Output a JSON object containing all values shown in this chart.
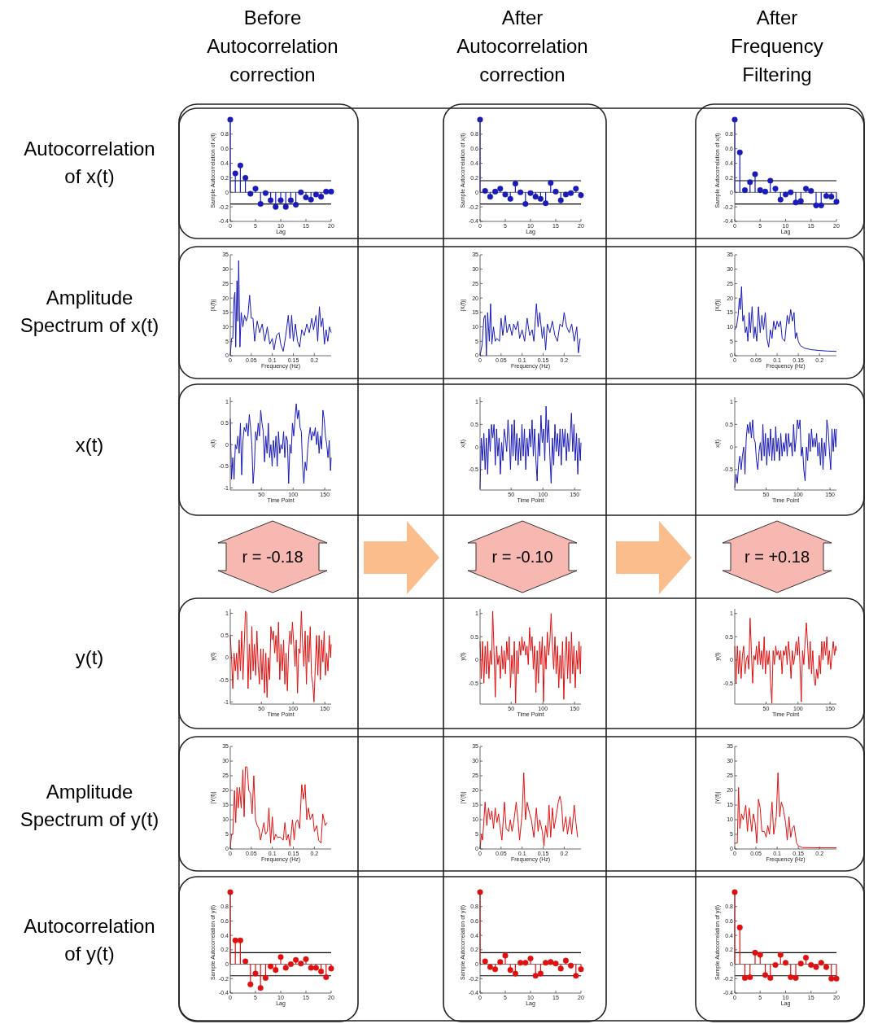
{
  "chart_data": [
    {
      "type": "other",
      "annotations": [
        "Before\nAutocorrelation\ncorrection",
        "After\nAutocorrelation\ncorrection",
        "After\nFrequency\nFiltering",
        "Autocorrelation\nof x(t)",
        "Amplitude\nSpectrum of x(t)",
        "x(t)",
        "y(t)",
        "Amplitude\nSpectrum of y(t)",
        "Autocorrelation\nof y(t)",
        "r = -0.18",
        "r = -0.10",
        "r = +0.18"
      ]
    },
    {
      "type": "lollipop",
      "xlabel": "Lag",
      "ylabel": "Sample Autocorrelation of x(t)",
      "color": "#1a1ab8",
      "marker": "circle",
      "xlim": [
        0,
        20
      ],
      "ylim": [
        -0.4,
        1
      ],
      "xticks": [
        0,
        5,
        10,
        15,
        20
      ],
      "yticks": [
        -0.4,
        -0.2,
        0,
        0.2,
        0.4,
        0.6,
        0.8
      ],
      "ref_lines": [
        {
          "axis": "y",
          "value": 0.16,
          "color": "#000000"
        },
        {
          "axis": "y",
          "value": -0.16,
          "color": "#000000"
        }
      ],
      "x": [
        0,
        1,
        2,
        3,
        4,
        5,
        6,
        7,
        8,
        9,
        10,
        11,
        12,
        13,
        14,
        15,
        16,
        17,
        18,
        19,
        20
      ],
      "values": [
        1,
        0.26,
        0.37,
        0.2,
        -0.02,
        0.05,
        -0.16,
        -0.01,
        -0.11,
        -0.2,
        -0.11,
        -0.2,
        -0.11,
        -0.17,
        0,
        -0.07,
        -0.1,
        -0.03,
        -0.06,
        0.01,
        0.01
      ]
    },
    {
      "type": "lollipop",
      "xlabel": "Lag",
      "ylabel": "Sample Autocorrelation of x(t)",
      "color": "#1a1ab8",
      "marker": "circle",
      "xlim": [
        0,
        20
      ],
      "ylim": [
        -0.4,
        1
      ],
      "xticks": [
        0,
        5,
        10,
        15,
        20
      ],
      "yticks": [
        -0.4,
        -0.2,
        0,
        0.2,
        0.4,
        0.6,
        0.8
      ],
      "ref_lines": [
        {
          "axis": "y",
          "value": 0.16,
          "color": "#000000"
        },
        {
          "axis": "y",
          "value": -0.16,
          "color": "#000000"
        }
      ],
      "x": [
        0,
        1,
        2,
        3,
        4,
        5,
        6,
        7,
        8,
        9,
        10,
        11,
        12,
        13,
        14,
        15,
        16,
        17,
        18,
        19,
        20
      ],
      "values": [
        1,
        0.02,
        -0.06,
        0.01,
        0.05,
        -0.03,
        -0.09,
        0.12,
        0,
        -0.16,
        -0.01,
        -0.06,
        -0.09,
        -0.15,
        0.13,
        0.01,
        -0.11,
        -0.03,
        -0.01,
        0.05,
        -0.04
      ]
    },
    {
      "type": "lollipop",
      "xlabel": "Lag",
      "ylabel": "Sample Autocorrelation of x(t)",
      "color": "#1a1ab8",
      "marker": "circle",
      "xlim": [
        0,
        20
      ],
      "ylim": [
        -0.4,
        1
      ],
      "xticks": [
        0,
        5,
        10,
        15,
        20
      ],
      "yticks": [
        -0.4,
        -0.2,
        0,
        0.2,
        0.4,
        0.6,
        0.8
      ],
      "ref_lines": [
        {
          "axis": "y",
          "value": 0.16,
          "color": "#000000"
        },
        {
          "axis": "y",
          "value": -0.16,
          "color": "#000000"
        }
      ],
      "x": [
        0,
        1,
        2,
        3,
        4,
        5,
        6,
        7,
        8,
        9,
        10,
        11,
        12,
        13,
        14,
        15,
        16,
        17,
        18,
        19,
        20
      ],
      "values": [
        1,
        0.55,
        0.03,
        0.14,
        0.25,
        0.03,
        0.01,
        0.16,
        0.05,
        -0.1,
        -0.03,
        0,
        -0.14,
        -0.12,
        0.05,
        0.02,
        -0.18,
        -0.18,
        -0.05,
        -0.06,
        -0.13
      ]
    },
    {
      "type": "line",
      "xlabel": "Frequency (Hz)",
      "ylabel": "|X(f)|",
      "color": "#1a1ab8",
      "xlim": [
        0,
        0.24
      ],
      "ylim": [
        0,
        35
      ],
      "xticks": [
        0,
        0.05,
        0.1,
        0.15,
        0.2
      ],
      "yticks": [
        0,
        5,
        10,
        15,
        20,
        25,
        30,
        35
      ],
      "x": [
        0,
        0.003,
        0.006,
        0.009,
        0.011,
        0.013,
        0.016,
        0.018,
        0.02,
        0.023,
        0.026,
        0.03,
        0.034,
        0.038,
        0.042,
        0.046,
        0.05,
        0.054,
        0.058,
        0.064,
        0.07,
        0.076,
        0.082,
        0.088,
        0.094,
        0.1,
        0.104,
        0.11,
        0.116,
        0.12,
        0.126,
        0.132,
        0.138,
        0.142,
        0.146,
        0.15,
        0.155,
        0.16,
        0.165,
        0.17,
        0.176,
        0.182,
        0.188,
        0.194,
        0.198,
        0.204,
        0.208,
        0.212,
        0.216,
        0.22,
        0.224,
        0.228,
        0.232,
        0.236,
        0.24
      ],
      "values": [
        0,
        6,
        6,
        20,
        22,
        3,
        26,
        12,
        33,
        3,
        15,
        10,
        14,
        12,
        14,
        21,
        13,
        13,
        5,
        12,
        8,
        11,
        5,
        10,
        4,
        6,
        2,
        7,
        8,
        4,
        1.5,
        7,
        14,
        6,
        14,
        5,
        11,
        5,
        3,
        9,
        7,
        11,
        8,
        13,
        9,
        14,
        5,
        17,
        10,
        13,
        4,
        9,
        5,
        10,
        8
      ]
    },
    {
      "type": "line",
      "xlabel": "Frequency (Hz)",
      "ylabel": "|X(f)|",
      "color": "#1a1ab8",
      "xlim": [
        0,
        0.24
      ],
      "ylim": [
        0,
        35
      ],
      "xticks": [
        0,
        0.05,
        0.1,
        0.15,
        0.2
      ],
      "yticks": [
        0,
        5,
        10,
        15,
        20,
        25,
        30,
        35
      ],
      "x": [
        0,
        0.005,
        0.009,
        0.012,
        0.015,
        0.018,
        0.022,
        0.025,
        0.028,
        0.032,
        0.036,
        0.04,
        0.046,
        0.05,
        0.054,
        0.06,
        0.064,
        0.07,
        0.076,
        0.08,
        0.085,
        0.09,
        0.094,
        0.1,
        0.106,
        0.112,
        0.118,
        0.124,
        0.128,
        0.134,
        0.138,
        0.142,
        0.148,
        0.152,
        0.156,
        0.16,
        0.166,
        0.172,
        0.178,
        0.184,
        0.19,
        0.196,
        0.2,
        0.206,
        0.212,
        0.218,
        0.224,
        0.23,
        0.234,
        0.238
      ],
      "values": [
        0,
        4,
        13,
        14,
        0,
        15,
        5,
        18,
        4,
        10,
        5,
        6,
        5,
        13,
        7,
        14,
        8,
        11,
        7,
        11,
        9,
        12,
        6,
        9,
        5,
        13,
        7,
        9,
        5,
        18,
        10,
        15,
        6,
        10,
        2,
        11,
        8,
        12,
        7,
        5,
        11,
        10,
        15,
        10,
        8,
        11,
        5,
        10,
        1,
        6
      ]
    },
    {
      "type": "line",
      "xlabel": "Frequency (Hz)",
      "ylabel": "|X(f)|",
      "color": "#1a1ab8",
      "xlim": [
        0,
        0.24
      ],
      "ylim": [
        0,
        35
      ],
      "xticks": [
        0,
        0.05,
        0.1,
        0.15,
        0.2
      ],
      "yticks": [
        0,
        5,
        10,
        15,
        20,
        25,
        30,
        35
      ],
      "x": [
        0,
        0.004,
        0.008,
        0.011,
        0.013,
        0.016,
        0.019,
        0.022,
        0.025,
        0.028,
        0.031,
        0.034,
        0.037,
        0.041,
        0.045,
        0.048,
        0.052,
        0.056,
        0.06,
        0.064,
        0.068,
        0.072,
        0.076,
        0.08,
        0.084,
        0.088,
        0.092,
        0.096,
        0.1,
        0.104,
        0.108,
        0.112,
        0.118,
        0.124,
        0.128,
        0.132,
        0.136,
        0.14,
        0.143,
        0.146,
        0.15,
        0.155,
        0.165,
        0.18,
        0.2,
        0.22,
        0.24
      ],
      "values": [
        9,
        10,
        14,
        20,
        16,
        24,
        12,
        14,
        8,
        10,
        5,
        15,
        8,
        17,
        6,
        10,
        5,
        17,
        8,
        14,
        9,
        15,
        6,
        3,
        9,
        6,
        12,
        9,
        12,
        10,
        12,
        6,
        5,
        14,
        11,
        16,
        12,
        15,
        6,
        8,
        5,
        3.5,
        2.6,
        2.1,
        1.8,
        1.6,
        1.5
      ]
    },
    {
      "type": "line",
      "xlabel": "Time Point",
      "ylabel": "x(t)",
      "color": "#1a1ab8",
      "xlim": [
        1,
        160
      ],
      "ylim": [
        -1.05,
        1.1
      ],
      "xticks": [
        50,
        100,
        150
      ],
      "yticks": [
        -1,
        -0.5,
        0,
        0.5,
        1
      ],
      "x": [
        1,
        3,
        5,
        7,
        9,
        11,
        13,
        15,
        17,
        19,
        21,
        23,
        25,
        27,
        29,
        31,
        33,
        35,
        37,
        39,
        41,
        43,
        45,
        47,
        49,
        51,
        53,
        55,
        57,
        59,
        61,
        63,
        65,
        67,
        69,
        71,
        73,
        75,
        77,
        79,
        81,
        83,
        85,
        87,
        89,
        91,
        93,
        95,
        97,
        99,
        101,
        103,
        105,
        107,
        109,
        111,
        113,
        115,
        117,
        119,
        121,
        123,
        125,
        127,
        129,
        131,
        133,
        135,
        137,
        139,
        141,
        143,
        145,
        147,
        149,
        151,
        153,
        155,
        157,
        159,
        160
      ],
      "values": [
        0.6,
        -0.8,
        -0.3,
        -0.8,
        0,
        -0.1,
        0.2,
        -0.2,
        0.5,
        -0.7,
        0.1,
        0.4,
        0.3,
        0.5,
        0.2,
        0.7,
        0.4,
        0,
        -0.9,
        -0.5,
        0.3,
        0.1,
        0.5,
        0.2,
        0.8,
        0.5,
        0.3,
        -0.4,
        0.2,
        -0.2,
        0.5,
        -0.3,
        0,
        -0.5,
        0.1,
        -0.3,
        0.2,
        -0.5,
        0.3,
        -0.2,
        0,
        -0.1,
        0.3,
        -0.3,
        0.2,
        0.1,
        -0.9,
        0,
        -0.2,
        0.5,
        0.2,
        0.6,
        0.95,
        0.6,
        0.8,
        0.4,
        0.3,
        -0.5,
        -0.9,
        -0.4,
        -0.6,
        -0.1,
        0.2,
        0.4,
        0.1,
        0.3,
        0.2,
        0.4,
        0,
        0.3,
        -0.2,
        0.2,
        -0.1,
        0.8,
        0.6,
        0.2,
        0,
        -0.3,
        0.1,
        -0.6,
        -0.3
      ]
    },
    {
      "type": "line",
      "xlabel": "Time Point",
      "ylabel": "x(t)",
      "color": "#1a1ab8",
      "xlim": [
        1,
        160
      ],
      "ylim": [
        -0.95,
        1.1
      ],
      "xticks": [
        50,
        100,
        150
      ],
      "yticks": [
        -0.5,
        0,
        0.5,
        1
      ],
      "x": [
        1,
        3,
        5,
        7,
        9,
        11,
        13,
        15,
        17,
        19,
        21,
        23,
        25,
        27,
        29,
        31,
        33,
        35,
        37,
        39,
        41,
        43,
        45,
        47,
        49,
        51,
        53,
        55,
        57,
        59,
        61,
        63,
        65,
        67,
        69,
        71,
        73,
        75,
        77,
        79,
        81,
        83,
        85,
        87,
        89,
        91,
        93,
        95,
        97,
        99,
        101,
        103,
        105,
        107,
        109,
        111,
        113,
        115,
        117,
        119,
        121,
        123,
        125,
        127,
        129,
        131,
        133,
        135,
        137,
        139,
        141,
        143,
        145,
        147,
        149,
        151,
        153,
        155,
        157,
        159,
        160
      ],
      "values": [
        -0.93,
        0.2,
        -0.3,
        0.3,
        -0.5,
        0.2,
        -0.6,
        0.4,
        -0.1,
        0.5,
        0.2,
        0.5,
        -0.4,
        0.4,
        -0.2,
        0.2,
        -0.6,
        0.1,
        -0.3,
        0.4,
        0.2,
        -0.1,
        0.6,
        0.2,
        -0.5,
        0.5,
        -0.2,
        0.6,
        -0.3,
        0.3,
        -0.4,
        0.2,
        -0.3,
        0.5,
        -0.2,
        0.4,
        -0.5,
        0.2,
        -0.2,
        0.4,
        0,
        0.6,
        -0.2,
        0.4,
        -0.3,
        -0.75,
        0.3,
        -0.2,
        0.7,
        0.1,
        0.4,
        -0.3,
        0.9,
        0.1,
        0.6,
        -0.2,
        -0.8,
        0.2,
        -0.4,
        0.5,
        -0.1,
        0.3,
        -0.2,
        0.4,
        -0.4,
        0.4,
        0,
        0.4,
        -0.3,
        0.3,
        -0.1,
        0.2,
        0.75,
        -0.1,
        0.5,
        -0.3,
        0.3,
        -0.6,
        0.2,
        -0.3,
        0.1
      ]
    },
    {
      "type": "line",
      "xlabel": "Time Point",
      "ylabel": "x(t)",
      "color": "#1a1ab8",
      "xlim": [
        1,
        160
      ],
      "ylim": [
        -0.95,
        1.1
      ],
      "xticks": [
        50,
        100,
        150
      ],
      "yticks": [
        -0.5,
        0,
        0.5,
        1
      ],
      "x": [
        1,
        3,
        5,
        7,
        9,
        11,
        13,
        15,
        17,
        19,
        21,
        23,
        25,
        27,
        29,
        31,
        33,
        35,
        37,
        39,
        41,
        43,
        45,
        47,
        49,
        51,
        53,
        55,
        57,
        59,
        61,
        63,
        65,
        67,
        69,
        71,
        73,
        75,
        77,
        79,
        81,
        83,
        85,
        87,
        89,
        91,
        93,
        95,
        97,
        99,
        101,
        103,
        105,
        107,
        109,
        111,
        113,
        115,
        117,
        119,
        121,
        123,
        125,
        127,
        129,
        131,
        133,
        135,
        137,
        139,
        141,
        143,
        145,
        147,
        149,
        151,
        153,
        155,
        157,
        159,
        160
      ],
      "values": [
        -0.9,
        -0.6,
        -0.8,
        -0.4,
        -0.2,
        -0.5,
        -0.2,
        0,
        -0.6,
        0.2,
        0.5,
        0.3,
        0.55,
        0.2,
        0.6,
        0.2,
        0.1,
        -0.3,
        -0.5,
        -0.1,
        0.1,
        -0.3,
        0.5,
        -0.2,
        0.3,
        -0.4,
        0.2,
        -0.2,
        0.4,
        -0.3,
        0.2,
        -0.3,
        0.45,
        -0.1,
        0.2,
        -0.3,
        0.3,
        -0.2,
        0.1,
        -0.1,
        0.3,
        -0.2,
        0.3,
        0,
        0.1,
        -0.2,
        0.5,
        -0.1,
        0.2,
        0.6,
        0.4,
        0.6,
        -0.2,
        0,
        -0.5,
        -0.75,
        0,
        -0.3,
        0.3,
        -0.1,
        0.4,
        0,
        0.2,
        0,
        0.3,
        -0.2,
        0.1,
        -0.4,
        0.2,
        -0.5,
        0.1,
        -0.2,
        0.6,
        0.4,
        -0.1,
        -0.5,
        0.4,
        -0.1,
        0.4,
        0,
        0.4
      ]
    },
    {
      "type": "line",
      "xlabel": "Time Point",
      "ylabel": "y(t)",
      "color": "#e01010",
      "xlim": [
        1,
        160
      ],
      "ylim": [
        -1.05,
        1.1
      ],
      "xticks": [
        50,
        100,
        150
      ],
      "yticks": [
        -1,
        -0.5,
        0,
        0.5,
        1
      ],
      "x": [
        1,
        3,
        5,
        7,
        9,
        11,
        13,
        15,
        17,
        19,
        21,
        23,
        25,
        27,
        29,
        31,
        33,
        35,
        37,
        39,
        41,
        43,
        45,
        47,
        49,
        51,
        53,
        55,
        57,
        59,
        61,
        63,
        65,
        67,
        69,
        71,
        73,
        75,
        77,
        79,
        81,
        83,
        85,
        87,
        89,
        91,
        93,
        95,
        97,
        99,
        101,
        103,
        105,
        107,
        109,
        111,
        113,
        115,
        117,
        119,
        121,
        123,
        125,
        127,
        129,
        131,
        133,
        135,
        137,
        139,
        141,
        143,
        145,
        147,
        149,
        151,
        153,
        155,
        157,
        159,
        160
      ],
      "values": [
        0.5,
        0,
        -0.7,
        0.1,
        -0.3,
        0.1,
        -0.5,
        0.4,
        -0.3,
        0.6,
        -0.5,
        0.3,
        1.05,
        1,
        -0.7,
        0.3,
        -0.5,
        0.7,
        -0.3,
        0.3,
        -0.4,
        0.6,
        -0.2,
        -0.6,
        0.2,
        -0.5,
        0.2,
        -0.8,
        0.1,
        -0.9,
        0,
        -0.5,
        0.7,
        0.4,
        0.6,
        0.1,
        0.5,
        -0.1,
        0.8,
        -0.5,
        0.3,
        -0.3,
        0.4,
        -0.6,
        0.1,
        -0.75,
        0.2,
        0.6,
        0.3,
        0.8,
        0.3,
        -0.2,
        0.4,
        -0.8,
        0.2,
        0.1,
        1.05,
        0.3,
        -0.2,
        0.6,
        -0.6,
        0.5,
        -0.1,
        0.7,
        -0.4,
        -0.6,
        -1,
        -0.2,
        0.5,
        -0.4,
        0.5,
        -0.5,
        0.4,
        -0.1,
        0.6,
        -0.4,
        0.1,
        -0.3,
        0.5,
        0,
        0.3
      ]
    },
    {
      "type": "line",
      "xlabel": "Time Point",
      "ylabel": "y(t)",
      "color": "#e01010",
      "xlim": [
        1,
        160
      ],
      "ylim": [
        -0.95,
        1.1
      ],
      "xticks": [
        50,
        100,
        150
      ],
      "yticks": [
        -0.5,
        0,
        0.5,
        1
      ],
      "x": [
        1,
        3,
        5,
        7,
        9,
        11,
        13,
        15,
        17,
        19,
        21,
        23,
        25,
        27,
        29,
        31,
        33,
        35,
        37,
        39,
        41,
        43,
        45,
        47,
        49,
        51,
        53,
        55,
        57,
        59,
        61,
        63,
        65,
        67,
        69,
        71,
        73,
        75,
        77,
        79,
        81,
        83,
        85,
        87,
        89,
        91,
        93,
        95,
        97,
        99,
        101,
        103,
        105,
        107,
        109,
        111,
        113,
        115,
        117,
        119,
        121,
        123,
        125,
        127,
        129,
        131,
        133,
        135,
        137,
        139,
        141,
        143,
        145,
        147,
        149,
        151,
        153,
        155,
        157,
        159,
        160
      ],
      "values": [
        0.4,
        -0.4,
        0.4,
        -0.5,
        0.3,
        -0.3,
        0.4,
        -0.4,
        0.2,
        -0.1,
        1.05,
        0.2,
        -0.8,
        0.3,
        -0.1,
        0.1,
        -0.4,
        0.3,
        -0.2,
        0.2,
        -0.3,
        0.4,
        0,
        0.5,
        -0.6,
        0.1,
        -0.3,
        0.4,
        -0.93,
        0.2,
        -0.3,
        0.4,
        0.1,
        0.5,
        0.2,
        0.4,
        0.1,
        0.3,
        -0.1,
        0.7,
        0.2,
        0.5,
        -0.2,
        0.3,
        -0.7,
        0.2,
        -0.5,
        0.4,
        -0.1,
        0.5,
        -0.9,
        0.3,
        -0.2,
        0.6,
        0.1,
        0.4,
        1,
        0.3,
        -0.2,
        0.5,
        -0.3,
        0.3,
        -0.6,
        0.1,
        -0.4,
        0.4,
        -0.85,
        0.1,
        0.5,
        -0.4,
        0.4,
        -0.5,
        0.6,
        -0.3,
        0.3,
        -0.6,
        0.2,
        -0.2,
        0.4,
        -0.3,
        0.3
      ]
    },
    {
      "type": "line",
      "xlabel": "Time Point",
      "ylabel": "y(t)",
      "color": "#e01010",
      "xlim": [
        1,
        160
      ],
      "ylim": [
        -0.95,
        1.1
      ],
      "xticks": [
        50,
        100,
        150
      ],
      "yticks": [
        -0.5,
        0,
        0.5,
        1
      ],
      "x": [
        1,
        3,
        5,
        7,
        9,
        11,
        13,
        15,
        17,
        19,
        21,
        23,
        25,
        27,
        29,
        31,
        33,
        35,
        37,
        39,
        41,
        43,
        45,
        47,
        49,
        51,
        53,
        55,
        57,
        59,
        61,
        63,
        65,
        67,
        69,
        71,
        73,
        75,
        77,
        79,
        81,
        83,
        85,
        87,
        89,
        91,
        93,
        95,
        97,
        99,
        101,
        103,
        105,
        107,
        109,
        111,
        113,
        115,
        117,
        119,
        121,
        123,
        125,
        127,
        129,
        131,
        133,
        135,
        137,
        139,
        141,
        143,
        145,
        147,
        149,
        151,
        153,
        155,
        157,
        159,
        160
      ],
      "values": [
        0.3,
        -0.5,
        0.3,
        -0.3,
        0.2,
        -0.4,
        0.1,
        0.3,
        -0.3,
        0,
        0.1,
        -0.2,
        0.9,
        0.2,
        -0.5,
        0.1,
        0,
        0.3,
        -0.1,
        0.4,
        -0.1,
        0.2,
        -0.2,
        0.5,
        -0.3,
        0.2,
        -0.1,
        0.2,
        -0.5,
        -0.93,
        0.2,
        -0.1,
        0.3,
        0.1,
        0.2,
        0,
        0.2,
        -0.3,
        0.2,
        0.1,
        0.3,
        -0.1,
        0.4,
        0.1,
        -0.4,
        0.2,
        -0.1,
        0.1,
        0.4,
        0.1,
        0.5,
        -0.1,
        -0.9,
        0.2,
        -0.1,
        0.4,
        0.8,
        0.3,
        -0.2,
        0.4,
        -0.3,
        0.2,
        -0.4,
        -0.55,
        -0.2,
        -0.4,
        0.1,
        -0.3,
        0.4,
        0,
        0.4,
        0.1,
        0.5,
        -0.1,
        0.2,
        -0.2,
        0.1,
        0.4,
        0.1,
        0.3,
        0.2
      ]
    },
    {
      "type": "line",
      "xlabel": "Frequency (Hz)",
      "ylabel": "|Y(f)|",
      "color": "#e01010",
      "xlim": [
        0,
        0.24
      ],
      "ylim": [
        0,
        35
      ],
      "xticks": [
        0,
        0.05,
        0.1,
        0.15,
        0.2
      ],
      "yticks": [
        0,
        5,
        10,
        15,
        20,
        25,
        30,
        35
      ],
      "x": [
        0,
        0.003,
        0.006,
        0.01,
        0.013,
        0.016,
        0.019,
        0.022,
        0.026,
        0.03,
        0.033,
        0.036,
        0.04,
        0.044,
        0.048,
        0.052,
        0.056,
        0.06,
        0.064,
        0.068,
        0.072,
        0.076,
        0.08,
        0.084,
        0.088,
        0.092,
        0.096,
        0.1,
        0.104,
        0.108,
        0.112,
        0.12,
        0.126,
        0.13,
        0.134,
        0.138,
        0.142,
        0.148,
        0.152,
        0.156,
        0.16,
        0.165,
        0.17,
        0.174,
        0.178,
        0.182,
        0.186,
        0.19,
        0.196,
        0.2,
        0.206,
        0.21,
        0.216,
        0.22,
        0.226,
        0.23
      ],
      "values": [
        0,
        5,
        5,
        20,
        9,
        21,
        14,
        21,
        14,
        27,
        11,
        28,
        28,
        20,
        19,
        12,
        25,
        10,
        8,
        7,
        3,
        6,
        9,
        5,
        6,
        14,
        2,
        11,
        3,
        5,
        4,
        4,
        3,
        9,
        3,
        5,
        1,
        10,
        3,
        9,
        10,
        7,
        22,
        17,
        22,
        10,
        14,
        10,
        12,
        6,
        8,
        3,
        2,
        12,
        8,
        9
      ]
    },
    {
      "type": "line",
      "xlabel": "Frequency (Hz)",
      "ylabel": "|Y(f)|",
      "color": "#e01010",
      "xlim": [
        0,
        0.24
      ],
      "ylim": [
        0,
        35
      ],
      "xticks": [
        0,
        0.05,
        0.1,
        0.15,
        0.2
      ],
      "yticks": [
        0,
        5,
        10,
        15,
        20,
        25,
        30,
        35
      ],
      "x": [
        0,
        0.003,
        0.006,
        0.012,
        0.016,
        0.02,
        0.024,
        0.028,
        0.032,
        0.036,
        0.04,
        0.044,
        0.048,
        0.052,
        0.058,
        0.062,
        0.068,
        0.072,
        0.076,
        0.08,
        0.086,
        0.09,
        0.094,
        0.1,
        0.104,
        0.108,
        0.112,
        0.118,
        0.122,
        0.128,
        0.134,
        0.138,
        0.142,
        0.148,
        0.152,
        0.156,
        0.16,
        0.164,
        0.168,
        0.172,
        0.176,
        0.182,
        0.186,
        0.19,
        0.194,
        0.198,
        0.204,
        0.208,
        0.214,
        0.218,
        0.224,
        0.228,
        0.232
      ],
      "values": [
        0,
        5,
        3,
        16,
        8,
        14,
        10,
        13,
        7,
        14,
        9,
        12,
        7,
        3,
        16,
        7,
        6,
        10,
        6,
        9,
        16,
        10,
        3,
        12,
        26,
        10,
        16,
        12,
        10,
        4,
        14,
        6,
        10,
        6,
        1,
        8,
        4,
        15,
        4,
        14,
        7,
        12,
        16,
        18,
        15,
        6,
        11,
        5,
        11,
        5,
        15,
        9,
        4
      ]
    },
    {
      "type": "line",
      "xlabel": "Frequency (Hz)",
      "ylabel": "|Y(f)|",
      "color": "#e01010",
      "xlim": [
        0,
        0.24
      ],
      "ylim": [
        0,
        35
      ],
      "xticks": [
        0,
        0.05,
        0.1,
        0.15,
        0.2
      ],
      "yticks": [
        0,
        5,
        10,
        15,
        20,
        25,
        30,
        35
      ],
      "x": [
        0,
        0.006,
        0.009,
        0.012,
        0.016,
        0.02,
        0.026,
        0.03,
        0.034,
        0.04,
        0.044,
        0.048,
        0.052,
        0.056,
        0.06,
        0.064,
        0.07,
        0.074,
        0.078,
        0.082,
        0.088,
        0.092,
        0.098,
        0.102,
        0.106,
        0.11,
        0.114,
        0.12,
        0.124,
        0.128,
        0.132,
        0.136,
        0.14,
        0.146,
        0.15,
        0.16,
        0.2,
        0.24
      ],
      "values": [
        2,
        2,
        21,
        7,
        12,
        10,
        15,
        6,
        14,
        6,
        12,
        9,
        2,
        17,
        14,
        6,
        6,
        4,
        8,
        5,
        16,
        5,
        11,
        26,
        11,
        16,
        14,
        9,
        3,
        11,
        4,
        7,
        8,
        2,
        1,
        0.5,
        0.4,
        0.4
      ]
    },
    {
      "type": "lollipop",
      "xlabel": "Lag",
      "ylabel": "Sample Autocorrelation of y(t)",
      "color": "#e01010",
      "marker": "circle",
      "xlim": [
        0,
        20
      ],
      "ylim": [
        -0.4,
        1
      ],
      "xticks": [
        0,
        5,
        10,
        15,
        20
      ],
      "yticks": [
        -0.4,
        -0.2,
        0,
        0.2,
        0.4,
        0.6,
        0.8
      ],
      "ref_lines": [
        {
          "axis": "y",
          "value": 0.16,
          "color": "#000000"
        },
        {
          "axis": "y",
          "value": -0.16,
          "color": "#000000"
        }
      ],
      "x": [
        0,
        1,
        2,
        3,
        4,
        5,
        6,
        7,
        8,
        9,
        10,
        11,
        12,
        13,
        14,
        15,
        16,
        17,
        18,
        19,
        20
      ],
      "values": [
        1,
        0.33,
        0.33,
        0.04,
        -0.28,
        -0.13,
        -0.33,
        -0.19,
        -0.03,
        -0.08,
        0.1,
        -0.05,
        0,
        0.06,
        0.01,
        0.07,
        -0.05,
        -0.05,
        -0.1,
        -0.18,
        -0.06
      ]
    },
    {
      "type": "lollipop",
      "xlabel": "Lag",
      "ylabel": "Sample Autocorrelation of y(t)",
      "color": "#e01010",
      "marker": "circle",
      "xlim": [
        0,
        20
      ],
      "ylim": [
        -0.4,
        1
      ],
      "xticks": [
        0,
        5,
        10,
        15,
        20
      ],
      "yticks": [
        -0.4,
        -0.2,
        0,
        0.2,
        0.4,
        0.6,
        0.8
      ],
      "ref_lines": [
        {
          "axis": "y",
          "value": 0.16,
          "color": "#000000"
        },
        {
          "axis": "y",
          "value": -0.16,
          "color": "#000000"
        }
      ],
      "x": [
        0,
        1,
        2,
        3,
        4,
        5,
        6,
        7,
        8,
        9,
        10,
        11,
        12,
        13,
        14,
        15,
        16,
        17,
        18,
        19,
        20
      ],
      "values": [
        1,
        0.04,
        -0.04,
        -0.07,
        0.03,
        0.12,
        -0.08,
        -0.13,
        0.02,
        0.02,
        0.08,
        -0.16,
        -0.13,
        0.02,
        0.03,
        0.01,
        -0.06,
        0.05,
        -0.02,
        -0.16,
        -0.07
      ]
    },
    {
      "type": "lollipop",
      "xlabel": "Lag",
      "ylabel": "Sample Autocorrelation of y(t)",
      "color": "#e01010",
      "marker": "circle",
      "xlim": [
        0,
        20
      ],
      "ylim": [
        -0.4,
        1
      ],
      "xticks": [
        0,
        5,
        10,
        15,
        20
      ],
      "yticks": [
        -0.4,
        -0.2,
        0,
        0.2,
        0.4,
        0.6,
        0.8
      ],
      "ref_lines": [
        {
          "axis": "y",
          "value": 0.16,
          "color": "#000000"
        },
        {
          "axis": "y",
          "value": -0.16,
          "color": "#000000"
        }
      ],
      "x": [
        0,
        1,
        2,
        3,
        4,
        5,
        6,
        7,
        8,
        9,
        10,
        11,
        12,
        13,
        14,
        15,
        16,
        17,
        18,
        19,
        20
      ],
      "values": [
        1,
        0.51,
        -0.19,
        -0.18,
        0.16,
        0.13,
        -0.15,
        -0.19,
        -0.01,
        0.13,
        0.02,
        -0.18,
        -0.19,
        0.01,
        0.09,
        -0.01,
        -0.04,
        0.02,
        -0.04,
        -0.2,
        -0.2
      ]
    }
  ]
}
